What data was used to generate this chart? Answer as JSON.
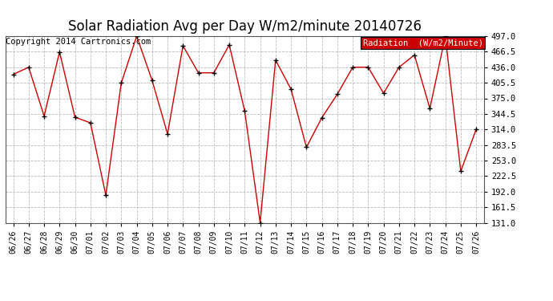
{
  "title": "Solar Radiation Avg per Day W/m2/minute 20140726",
  "copyright": "Copyright 2014 Cartronics.com",
  "legend_label": "Radiation  (W/m2/Minute)",
  "dates": [
    "06/26",
    "06/27",
    "06/28",
    "06/29",
    "06/30",
    "07/01",
    "07/02",
    "07/03",
    "07/04",
    "07/05",
    "07/06",
    "07/07",
    "07/08",
    "07/09",
    "07/10",
    "07/11",
    "07/12",
    "07/13",
    "07/14",
    "07/15",
    "07/16",
    "07/17",
    "07/18",
    "07/19",
    "07/20",
    "07/21",
    "07/22",
    "07/23",
    "07/24",
    "07/25",
    "07/26"
  ],
  "values": [
    422,
    436,
    340,
    466,
    338,
    327,
    185,
    405,
    497,
    410,
    305,
    478,
    425,
    425,
    480,
    350,
    131,
    450,
    393,
    279,
    337,
    383,
    436,
    436,
    385,
    436,
    460,
    355,
    497,
    232,
    314
  ],
  "y_ticks": [
    131.0,
    161.5,
    192.0,
    222.5,
    253.0,
    283.5,
    314.0,
    344.5,
    375.0,
    405.5,
    436.0,
    466.5,
    497.0
  ],
  "y_min": 131.0,
  "y_max": 497.0,
  "line_color": "#cc0000",
  "marker_color": "#000000",
  "bg_color": "#ffffff",
  "grid_color": "#aaaaaa",
  "title_fontsize": 12,
  "copyright_fontsize": 7.5,
  "legend_bg": "#cc0000",
  "legend_text_color": "#ffffff",
  "legend_fontsize": 7.5,
  "tick_fontsize": 7,
  "ytick_fontsize": 7.5
}
